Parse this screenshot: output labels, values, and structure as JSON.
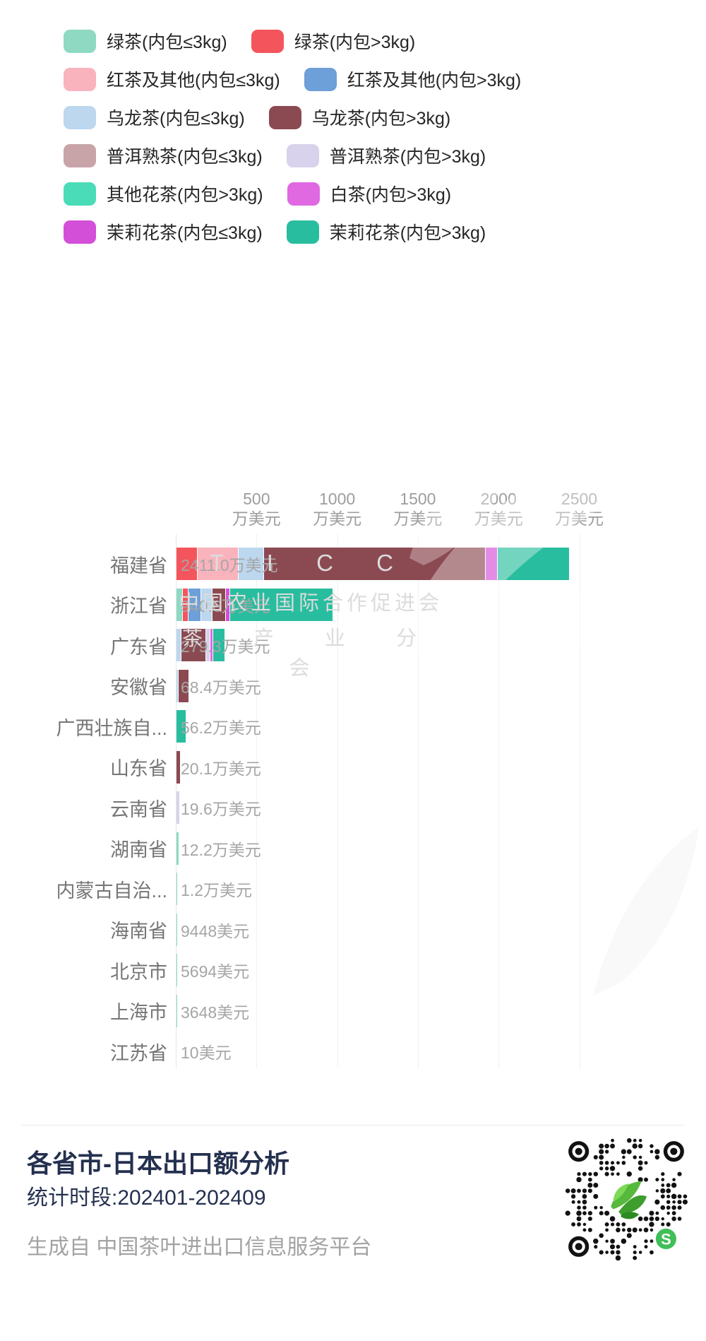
{
  "legend": {
    "rows": [
      [
        {
          "label": "绿茶(内包≤3kg)",
          "color": "#8FD9C3"
        },
        {
          "label": "绿茶(内包>3kg)",
          "color": "#F4555C"
        }
      ],
      [
        {
          "label": "红茶及其他(内包≤3kg)",
          "color": "#F9B3BC"
        },
        {
          "label": "红茶及其他(内包>3kg)",
          "color": "#6D9FD8"
        }
      ],
      [
        {
          "label": "乌龙茶(内包≤3kg)",
          "color": "#BCD7EE"
        },
        {
          "label": "乌龙茶(内包>3kg)",
          "color": "#8B4A52"
        }
      ],
      [
        {
          "label": "普洱熟茶(内包≤3kg)",
          "color": "#C8A4A9"
        },
        {
          "label": "普洱熟茶(内包>3kg)",
          "color": "#D9D2EC"
        }
      ],
      [
        {
          "label": "其他花茶(内包>3kg)",
          "color": "#4ADCB8"
        },
        {
          "label": "白茶(内包>3kg)",
          "color": "#E069E2"
        }
      ],
      [
        {
          "label": "茉莉花茶(内包≤3kg)",
          "color": "#D44FD8"
        },
        {
          "label": "茉莉花茶(内包>3kg)",
          "color": "#29BD9F"
        }
      ]
    ]
  },
  "chart_data": {
    "type": "bar",
    "orientation": "horizontal",
    "stacked": true,
    "title": "各省市-日本出口额分析",
    "unit": "万美元",
    "x_axis": {
      "ticks": [
        500,
        1000,
        1500,
        2000,
        2500
      ],
      "tick_suffix": "万美元",
      "max": 2500,
      "grid": true
    },
    "categories": [
      "福建省",
      "浙江省",
      "广东省",
      "安徽省",
      "广西壮族自...",
      "山东省",
      "云南省",
      "湖南省",
      "内蒙古自治...",
      "海南省",
      "北京市",
      "上海市",
      "江苏省"
    ],
    "rows": [
      {
        "province": "福建省",
        "value_label": "2411.0万美元",
        "total_wan": 2411.0,
        "segments": [
          {
            "series": "绿茶(内包>3kg)",
            "value": 127
          },
          {
            "series": "红茶及其他(内包≤3kg)",
            "value": 250
          },
          {
            "series": "乌龙茶(内包≤3kg)",
            "value": 153
          },
          {
            "series": "乌龙茶(内包>3kg)",
            "value": 1369
          },
          {
            "series": "茉莉花茶(内包≤3kg)",
            "value": 70
          },
          {
            "series": "茉莉花茶(内包>3kg)",
            "value": 442
          }
        ]
      },
      {
        "province": "浙江省",
        "value_label": "940.6万美元",
        "total_wan": 940.6,
        "segments": [
          {
            "series": "绿茶(内包≤3kg)",
            "value": 35
          },
          {
            "series": "绿茶(内包>3kg)",
            "value": 30
          },
          {
            "series": "红茶及其他(内包>3kg)",
            "value": 75
          },
          {
            "series": "乌龙茶(内包≤3kg)",
            "value": 65
          },
          {
            "series": "乌龙茶(内包>3kg)",
            "value": 80
          },
          {
            "series": "茉莉花茶(内包≤3kg)",
            "value": 20
          },
          {
            "series": "茉莉花茶(内包>3kg)",
            "value": 635.6
          }
        ]
      },
      {
        "province": "广东省",
        "value_label": "279.3万美元",
        "total_wan": 279.3,
        "segments": [
          {
            "series": "乌龙茶(内包≤3kg)",
            "value": 28
          },
          {
            "series": "乌龙茶(内包>3kg)",
            "value": 145
          },
          {
            "series": "普洱熟茶(内包>3kg)",
            "value": 25
          },
          {
            "series": "白茶(内包>3kg)",
            "value": 13
          },
          {
            "series": "茉莉花茶(内包>3kg)",
            "value": 68.3
          }
        ]
      },
      {
        "province": "安徽省",
        "value_label": "68.4万美元",
        "total_wan": 68.4,
        "segments": [
          {
            "series": "乌龙茶(内包≤3kg)",
            "value": 10
          },
          {
            "series": "乌龙茶(内包>3kg)",
            "value": 58.4
          }
        ]
      },
      {
        "province": "广西壮族自...",
        "value_label": "56.2万美元",
        "total_wan": 56.2,
        "segments": [
          {
            "series": "茉莉花茶(内包>3kg)",
            "value": 56.2
          }
        ]
      },
      {
        "province": "山东省",
        "value_label": "20.1万美元",
        "total_wan": 20.1,
        "segments": [
          {
            "series": "乌龙茶(内包>3kg)",
            "value": 20.1
          }
        ]
      },
      {
        "province": "云南省",
        "value_label": "19.6万美元",
        "total_wan": 19.6,
        "segments": [
          {
            "series": "普洱熟茶(内包>3kg)",
            "value": 19.6
          }
        ]
      },
      {
        "province": "湖南省",
        "value_label": "12.2万美元",
        "total_wan": 12.2,
        "segments": [
          {
            "series": "绿茶(内包≤3kg)",
            "value": 12.2
          }
        ]
      },
      {
        "province": "内蒙古自治...",
        "value_label": "1.2万美元",
        "total_wan": 1.2,
        "segments": [
          {
            "series": "绿茶(内包≤3kg)",
            "value": 1.2
          }
        ]
      },
      {
        "province": "海南省",
        "value_label": "9448美元",
        "total_wan": 0.9448,
        "segments": [
          {
            "series": "绿茶(内包≤3kg)",
            "value": 0.9448
          }
        ]
      },
      {
        "province": "北京市",
        "value_label": "5694美元",
        "total_wan": 0.5694,
        "segments": [
          {
            "series": "绿茶(内包≤3kg)",
            "value": 0.5694
          }
        ]
      },
      {
        "province": "上海市",
        "value_label": "3648美元",
        "total_wan": 0.3648,
        "segments": [
          {
            "series": "绿茶(内包≤3kg)",
            "value": 0.3648
          }
        ]
      },
      {
        "province": "江苏省",
        "value_label": "10美元",
        "total_wan": 0.001,
        "segments": [
          {
            "series": "绿茶(内包≤3kg)",
            "value": 0.001
          }
        ]
      }
    ]
  },
  "watermark": {
    "line1": "T I C C",
    "line2": "中国农业国际合作促进会",
    "line3": "茶 产 业 分 会"
  },
  "footer": {
    "title": "各省市-日本出口额分析",
    "period": "统计时段:202401-202409",
    "source": "生成自 中国茶叶进出口信息服务平台"
  }
}
